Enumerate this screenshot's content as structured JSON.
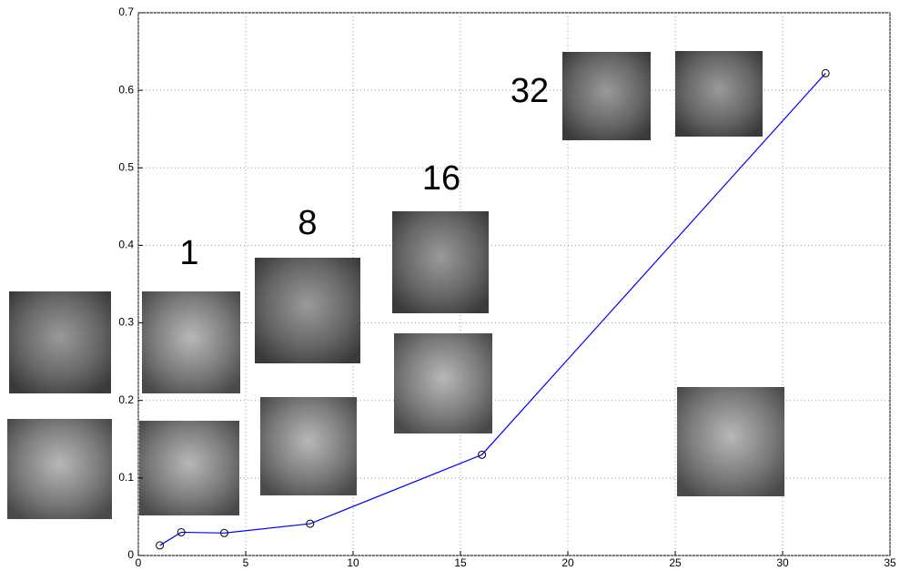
{
  "chart_data": {
    "type": "line",
    "x": [
      1,
      2,
      4,
      8,
      16,
      32
    ],
    "series": [
      {
        "color": "#0000ff",
        "marker_color": "#000000",
        "values": [
          0.013,
          0.03,
          0.029,
          0.041,
          0.13,
          0.622
        ]
      }
    ],
    "xlim": [
      0,
      35
    ],
    "xticks": [
      0,
      5,
      10,
      15,
      20,
      25,
      30,
      35
    ],
    "ylim": [
      0,
      0.7
    ],
    "yticks": [
      0,
      0.1,
      0.2,
      0.3,
      0.4,
      0.5,
      0.6,
      0.7
    ],
    "grid": true,
    "annotations": [
      "1",
      "8",
      "16",
      "32"
    ]
  }
}
